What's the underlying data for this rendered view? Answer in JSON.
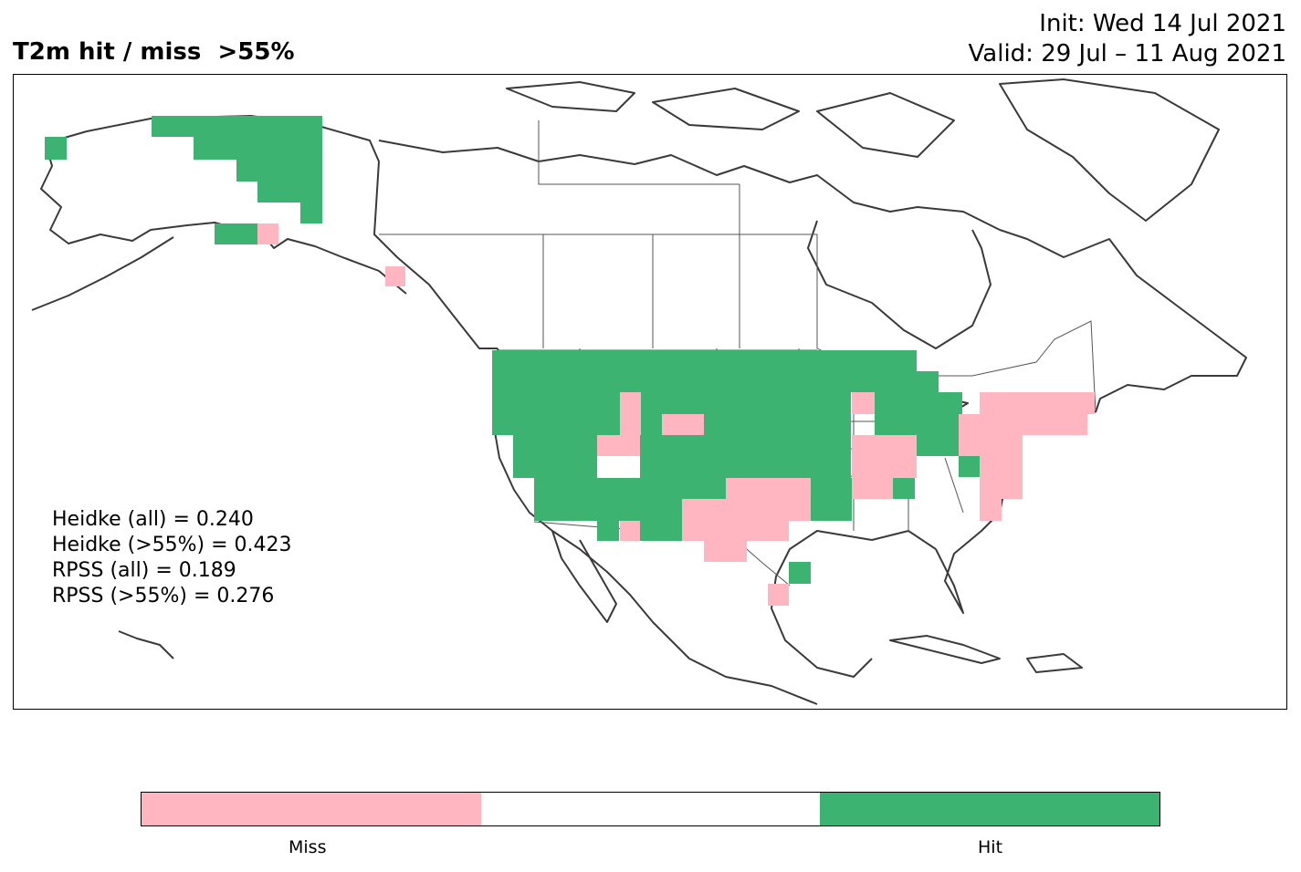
{
  "title": {
    "left": "T2m hit / miss  >55%",
    "init": "Init: Wed 14 Jul 2021",
    "valid": "Valid: 29 Jul – 11 Aug 2021"
  },
  "stats": [
    "Heidke (all) = 0.240",
    "Heidke (>55%) = 0.423",
    "RPSS (all) = 0.189",
    "RPSS (>55%) = 0.276"
  ],
  "colorbar": {
    "segments": [
      {
        "name": "miss",
        "color": "#ffb6c1"
      },
      {
        "name": "neutral",
        "color": "#ffffff"
      },
      {
        "name": "hit",
        "color": "#3cb371"
      }
    ],
    "labels": [
      "Miss",
      "Hit"
    ]
  },
  "colors": {
    "hit": "#3cb371",
    "miss": "#ffb6c1",
    "coast": "#3a3a3a",
    "border": "#555555"
  }
}
